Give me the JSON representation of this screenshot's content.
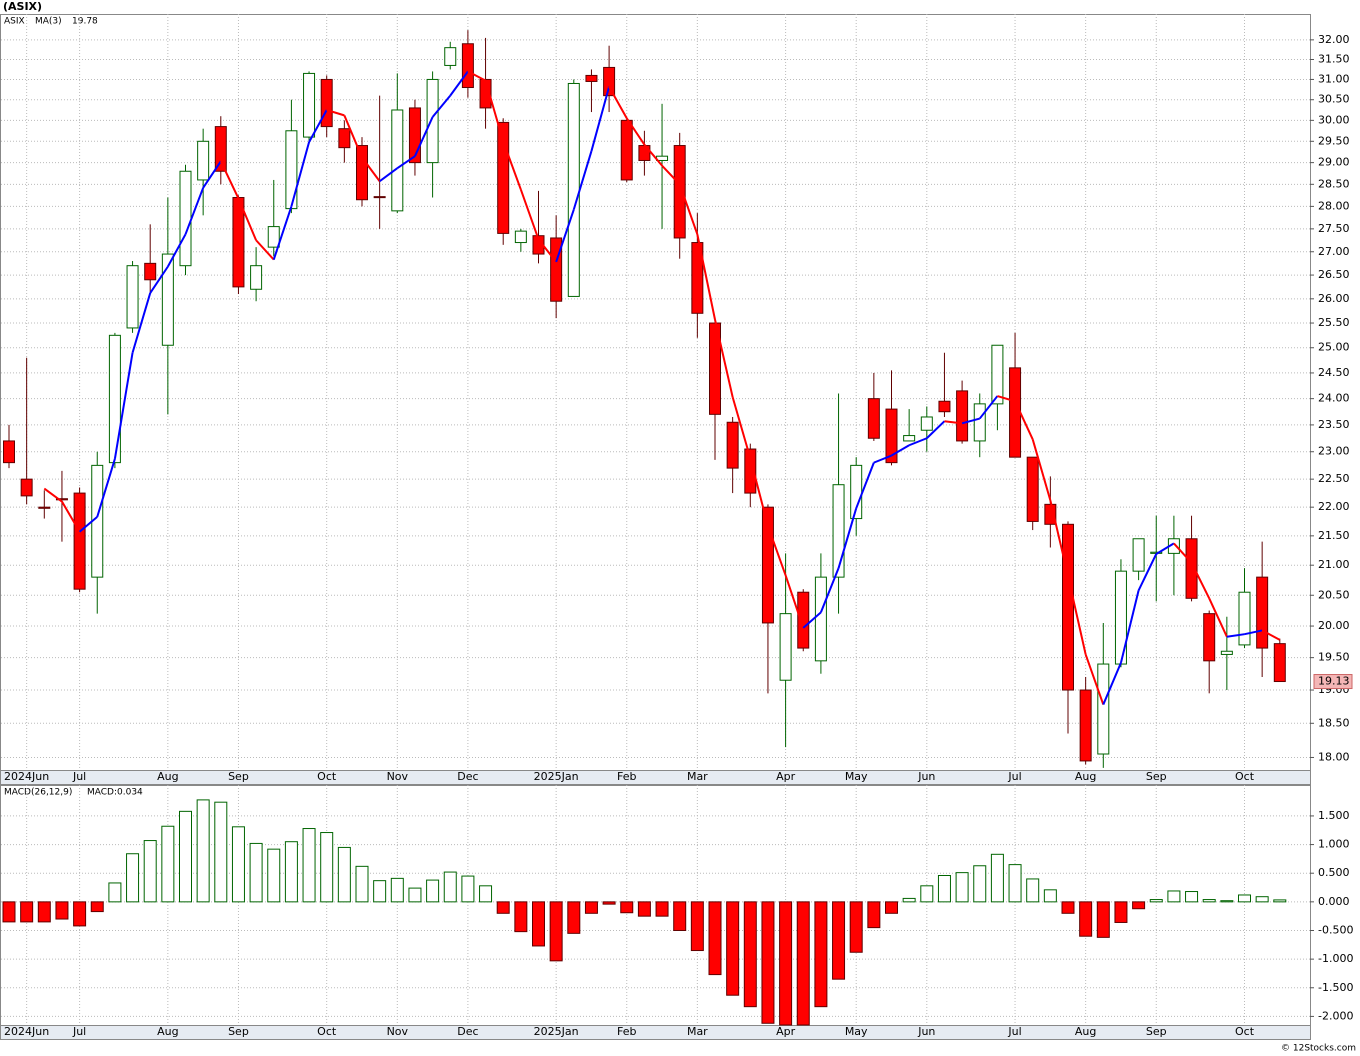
{
  "chart_data": [
    {
      "type": "candlestick",
      "title": "(ASIX)",
      "symbol": "ASIX",
      "symbol_color": "#008000",
      "log_scale": true,
      "grid": true,
      "categories": [
        null,
        "2024Jun",
        null,
        null,
        "Jul",
        null,
        null,
        null,
        null,
        "Aug",
        null,
        null,
        null,
        "Sep",
        null,
        null,
        null,
        null,
        "Oct",
        null,
        null,
        null,
        "Nov",
        null,
        null,
        null,
        "Dec",
        null,
        null,
        null,
        null,
        "2025Jan",
        null,
        null,
        null,
        "Feb",
        null,
        null,
        null,
        "Mar",
        null,
        null,
        null,
        null,
        "Apr",
        null,
        null,
        null,
        "May",
        null,
        null,
        null,
        "Jun",
        null,
        null,
        null,
        null,
        "Jul",
        null,
        null,
        null,
        "Aug",
        null,
        null,
        null,
        "Sep",
        null,
        null,
        null,
        null,
        "Oct",
        null,
        null
      ],
      "open": [
        23.2,
        22.5,
        22.0,
        22.15,
        22.25,
        20.8,
        22.8,
        25.4,
        26.75,
        25.05,
        26.7,
        28.6,
        29.85,
        28.2,
        26.2,
        27.1,
        27.95,
        29.6,
        31.0,
        29.8,
        29.4,
        28.22,
        27.9,
        30.3,
        29.0,
        31.35,
        31.9,
        31.0,
        29.95,
        27.2,
        27.35,
        27.3,
        26.05,
        31.1,
        31.3,
        30.0,
        29.4,
        29.05,
        29.4,
        27.2,
        25.5,
        23.55,
        23.05,
        22.0,
        19.15,
        20.55,
        19.45,
        20.8,
        21.8,
        24.0,
        23.8,
        23.2,
        23.4,
        23.95,
        24.15,
        23.2,
        23.9,
        24.6,
        22.9,
        22.05,
        21.7,
        19.0,
        18.05,
        19.4,
        20.9,
        21.2,
        21.2,
        21.45,
        20.2,
        19.55,
        19.7,
        20.8,
        19.72
      ],
      "high": [
        23.5,
        24.8,
        22.3,
        22.65,
        22.35,
        23.0,
        25.3,
        26.8,
        27.6,
        28.2,
        28.95,
        29.8,
        30.1,
        28.25,
        27.1,
        28.6,
        30.5,
        31.2,
        31.1,
        30.0,
        29.6,
        30.6,
        31.15,
        30.5,
        31.2,
        31.95,
        32.25,
        32.05,
        30.05,
        27.5,
        28.35,
        27.8,
        31.0,
        31.25,
        31.85,
        30.05,
        29.75,
        30.4,
        29.7,
        27.85,
        25.6,
        23.65,
        23.15,
        22.05,
        21.2,
        20.6,
        21.2,
        24.1,
        22.9,
        24.5,
        24.55,
        23.8,
        23.85,
        24.9,
        24.35,
        24.1,
        25.05,
        25.3,
        22.9,
        22.55,
        21.75,
        19.2,
        20.05,
        21.1,
        21.45,
        21.85,
        21.85,
        21.85,
        20.25,
        20.15,
        20.95,
        21.4,
        19.8
      ],
      "low": [
        22.7,
        22.05,
        21.8,
        21.4,
        20.55,
        20.2,
        22.7,
        25.3,
        26.1,
        23.7,
        26.5,
        27.8,
        28.5,
        26.1,
        25.95,
        26.9,
        27.85,
        29.45,
        29.6,
        29.0,
        28.0,
        27.5,
        27.85,
        28.7,
        28.2,
        31.25,
        30.55,
        29.8,
        27.15,
        27.0,
        26.75,
        25.6,
        26.05,
        30.2,
        30.2,
        28.55,
        28.7,
        27.5,
        26.85,
        25.2,
        22.85,
        22.25,
        22.0,
        18.95,
        18.15,
        19.6,
        19.25,
        20.2,
        21.5,
        23.2,
        22.75,
        23.2,
        23.0,
        23.65,
        23.15,
        22.9,
        23.4,
        22.9,
        21.6,
        21.3,
        18.35,
        17.9,
        17.85,
        19.35,
        20.75,
        20.4,
        20.5,
        20.4,
        18.95,
        19.0,
        19.65,
        19.2,
        19.13
      ],
      "close": [
        22.8,
        22.2,
        21.98,
        22.13,
        20.6,
        22.75,
        25.25,
        26.7,
        26.4,
        26.95,
        28.8,
        29.5,
        28.8,
        26.25,
        26.7,
        27.55,
        29.75,
        31.15,
        29.85,
        29.35,
        28.15,
        28.2,
        30.25,
        29.0,
        31.0,
        31.8,
        30.8,
        30.3,
        27.4,
        27.45,
        26.95,
        25.95,
        30.9,
        30.95,
        30.6,
        28.6,
        29.05,
        29.15,
        27.3,
        25.7,
        23.7,
        22.7,
        22.25,
        20.05,
        20.2,
        19.65,
        20.8,
        22.4,
        22.75,
        23.25,
        22.8,
        23.3,
        23.65,
        23.75,
        23.2,
        23.9,
        25.05,
        22.9,
        21.75,
        21.7,
        19.0,
        17.95,
        19.4,
        20.9,
        21.45,
        21.22,
        21.45,
        20.45,
        19.45,
        19.6,
        20.55,
        19.65,
        19.13
      ],
      "up_color": "#ffffff",
      "up_outline": "#006400",
      "down_color": "#ff0000",
      "down_outline": "#600000",
      "ma": {
        "name": "MA(3)",
        "color": "#0000cc",
        "up_color": "#0000ff",
        "down_color": "#ff0000",
        "values": [
          null,
          null,
          22.33,
          22.1,
          21.57,
          21.83,
          22.87,
          24.9,
          26.12,
          26.68,
          27.38,
          28.42,
          29.03,
          28.18,
          27.25,
          26.83,
          28.0,
          29.48,
          30.25,
          30.12,
          29.12,
          28.57,
          28.87,
          29.15,
          30.08,
          30.6,
          31.2,
          30.97,
          29.5,
          28.38,
          27.27,
          26.78,
          27.93,
          29.27,
          30.82,
          30.05,
          29.42,
          28.93,
          28.5,
          27.38,
          25.57,
          24.03,
          22.88,
          21.67,
          20.83,
          19.97,
          20.22,
          20.95,
          21.98,
          22.8,
          22.93,
          23.12,
          23.25,
          23.57,
          23.53,
          23.62,
          24.05,
          23.95,
          23.23,
          22.12,
          20.82,
          19.55,
          18.78,
          19.42,
          20.58,
          21.19,
          21.37,
          21.04,
          20.45,
          19.83,
          19.87,
          19.93,
          19.78
        ]
      },
      "last_price_color": "#f4b6b6",
      "ylim": [
        17.82,
        32.67
      ],
      "yticks": [
        {
          "value": 18,
          "label": "18.00"
        },
        {
          "value": 18.5,
          "label": "18.50"
        },
        {
          "value": 19,
          "label": "19.00"
        },
        {
          "value": 19.5,
          "label": "19.50"
        },
        {
          "value": 20,
          "label": "20.00"
        },
        {
          "value": 20.5,
          "label": "20.50"
        },
        {
          "value": 21,
          "label": "21.00"
        },
        {
          "value": 21.5,
          "label": "21.50"
        },
        {
          "value": 22,
          "label": "22.00"
        },
        {
          "value": 22.5,
          "label": "22.50"
        },
        {
          "value": 23,
          "label": "23.00"
        },
        {
          "value": 23.5,
          "label": "23.50"
        },
        {
          "value": 24,
          "label": "24.00"
        },
        {
          "value": 24.5,
          "label": "24.50"
        },
        {
          "value": 25,
          "label": "25.00"
        },
        {
          "value": 25.5,
          "label": "25.50"
        },
        {
          "value": 26,
          "label": "26.00"
        },
        {
          "value": 26.5,
          "label": "26.50"
        },
        {
          "value": 27,
          "label": "27.00"
        },
        {
          "value": 27.5,
          "label": "27.50"
        },
        {
          "value": 28,
          "label": "28.00"
        },
        {
          "value": 28.5,
          "label": "28.50"
        },
        {
          "value": 29,
          "label": "29.00"
        },
        {
          "value": 29.5,
          "label": "29.50"
        },
        {
          "value": 30,
          "label": "30.00"
        },
        {
          "value": 30.5,
          "label": "30.50"
        },
        {
          "value": 31,
          "label": "31.00"
        },
        {
          "value": 31.5,
          "label": "31.50"
        },
        {
          "value": 32,
          "label": "32.00"
        }
      ]
    },
    {
      "type": "bar",
      "title": "MACD(26,12,9)",
      "legend": "MACD:0.034",
      "legend_color": "#0000cc",
      "grid": true,
      "categories": [
        null,
        "2024Jun",
        null,
        null,
        "Jul",
        null,
        null,
        null,
        null,
        "Aug",
        null,
        null,
        null,
        "Sep",
        null,
        null,
        null,
        null,
        "Oct",
        null,
        null,
        null,
        "Nov",
        null,
        null,
        null,
        "Dec",
        null,
        null,
        null,
        null,
        "2025Jan",
        null,
        null,
        null,
        "Feb",
        null,
        null,
        null,
        "Mar",
        null,
        null,
        null,
        null,
        "Apr",
        null,
        null,
        null,
        "May",
        null,
        null,
        null,
        "Jun",
        null,
        null,
        null,
        null,
        "Jul",
        null,
        null,
        null,
        "Aug",
        null,
        null,
        null,
        "Sep",
        null,
        null,
        null,
        null,
        "Oct",
        null,
        null
      ],
      "values": [
        -0.35,
        -0.35,
        -0.35,
        -0.3,
        -0.42,
        -0.17,
        0.33,
        0.84,
        1.07,
        1.32,
        1.58,
        1.78,
        1.74,
        1.31,
        1.02,
        0.92,
        1.05,
        1.28,
        1.21,
        0.95,
        0.62,
        0.37,
        0.41,
        0.24,
        0.38,
        0.52,
        0.45,
        0.28,
        -0.2,
        -0.52,
        -0.77,
        -1.03,
        -0.55,
        -0.2,
        -0.04,
        -0.19,
        -0.25,
        -0.25,
        -0.5,
        -0.85,
        -1.27,
        -1.63,
        -1.83,
        -2.12,
        -2.15,
        -2.15,
        -1.83,
        -1.35,
        -0.88,
        -0.45,
        -0.2,
        0.06,
        0.28,
        0.46,
        0.51,
        0.63,
        0.83,
        0.65,
        0.4,
        0.21,
        -0.2,
        -0.6,
        -0.62,
        -0.36,
        -0.12,
        0.04,
        0.19,
        0.18,
        0.04,
        0.02,
        0.12,
        0.09,
        0.034
      ],
      "positive_color": "#ffffff",
      "positive_outline": "#006400",
      "negative_color": "#ff0000",
      "negative_outline": "#600000",
      "ylim": [
        -2.15,
        2.04
      ],
      "yticks": [
        {
          "value": -2,
          "label": "-2.000"
        },
        {
          "value": -1.5,
          "label": "-1.500"
        },
        {
          "value": -1,
          "label": "-1.000"
        },
        {
          "value": -0.5,
          "label": "-0.500"
        },
        {
          "value": 0,
          "label": "0.000"
        },
        {
          "value": 0.5,
          "label": "0.500"
        },
        {
          "value": 1,
          "label": "1.000"
        },
        {
          "value": 1.5,
          "label": "1.500"
        }
      ],
      "annotation": "© 12Stocks.com"
    }
  ]
}
